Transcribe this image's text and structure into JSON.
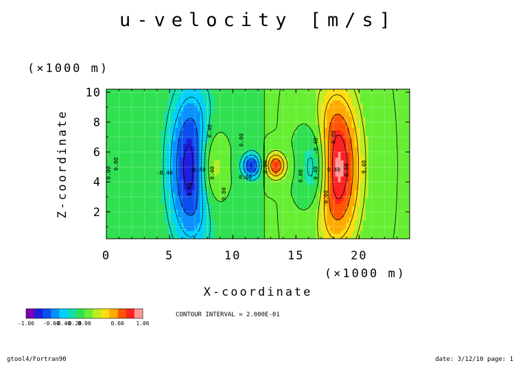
{
  "footer_left": "gtool4/Fortran90",
  "footer_right": "date: 3/12/10 page: 1",
  "chart_data": {
    "type": "heatmap",
    "title": "u-velocity [m/s]",
    "xlabel": "X-coordinate",
    "ylabel": "Z-coordinate",
    "x_unit": "(×1000 m)",
    "y_unit": "(×1000 m)",
    "xlim": [
      0,
      24
    ],
    "ylim": [
      0.2,
      10.2
    ],
    "x_tick_values": [
      0,
      5,
      10,
      15,
      20
    ],
    "x_tick_labels": [
      "0",
      "5",
      "10",
      "15",
      "20"
    ],
    "y_tick_values": [
      2,
      4,
      6,
      8,
      10
    ],
    "y_tick_labels": [
      "2",
      "4",
      "6",
      "8",
      "10"
    ],
    "contour_interval_text": "CONTOUR INTERVAL = 2.000E-01",
    "field": {
      "x_center": 12.5,
      "z_center": 5.2,
      "terms": [
        {
          "amp": -0.95,
          "x0": 6.8,
          "sx": 1.3,
          "z0": 5.0,
          "sz": 3.6
        },
        {
          "amp": 1.0,
          "x0": 18.2,
          "sx": 1.3,
          "z0": 5.0,
          "sz": 3.6
        },
        {
          "amp": 0.6,
          "x0": 8.2,
          "sx": 0.8,
          "z0": 5.0,
          "sz": 2.0
        },
        {
          "amp": -0.6,
          "x0": 16.6,
          "sx": 0.8,
          "z0": 5.0,
          "sz": 2.0
        },
        {
          "amp": -0.8,
          "x0": 11.5,
          "sx": 0.55,
          "z0": 5.1,
          "sz": 0.6
        },
        {
          "amp": 0.8,
          "x0": 13.4,
          "sx": 0.55,
          "z0": 5.1,
          "sz": 0.6
        }
      ]
    },
    "colorbar": {
      "min": -1.06,
      "max": 1.06,
      "colors": [
        "#7a00b0",
        "#1e1edd",
        "#0a50f0",
        "#0a90ff",
        "#00d0ff",
        "#10e0b0",
        "#30e050",
        "#66ee33",
        "#bbee22",
        "#ffdd10",
        "#ffaa00",
        "#ff5500",
        "#ff2222",
        "#ff9999"
      ],
      "labels": [
        "-1.06",
        "-0.60",
        "-0.40",
        "-0.20",
        "0.00",
        "0.60",
        "1.06"
      ]
    },
    "contour_labels": [
      {
        "text": "0.40",
        "x": 8.2,
        "z": 7.4,
        "rot": -90
      },
      {
        "text": "0.40",
        "x": 8.4,
        "z": 4.6,
        "rot": -90
      },
      {
        "text": "0.00",
        "x": 9.3,
        "z": 3.2,
        "rot": -90
      },
      {
        "text": "0.00",
        "x": 10.7,
        "z": 6.8,
        "rot": -90
      },
      {
        "text": "0.00",
        "x": 11.0,
        "z": 4.3,
        "rot": 0
      },
      {
        "text": "0.00",
        "x": 12.6,
        "z": 5.0,
        "rot": -90
      },
      {
        "text": "-0.40",
        "x": 6.6,
        "z": 3.4,
        "rot": -90
      },
      {
        "text": "-0.40",
        "x": 7.2,
        "z": 4.8,
        "rot": 0
      },
      {
        "text": "-0.40",
        "x": 4.6,
        "z": 4.6,
        "rot": 0
      },
      {
        "text": "0.00",
        "x": 0.8,
        "z": 5.2,
        "rot": -90
      },
      {
        "text": "0.00",
        "x": 0.2,
        "z": 4.6,
        "rot": -90
      },
      {
        "text": "0.00",
        "x": 15.4,
        "z": 4.4,
        "rot": -90
      },
      {
        "text": "-0.40",
        "x": 16.6,
        "z": 6.4,
        "rot": -90
      },
      {
        "text": "0.40",
        "x": 16.6,
        "z": 4.6,
        "rot": -90
      },
      {
        "text": "0.40",
        "x": 18.0,
        "z": 4.8,
        "rot": 0
      },
      {
        "text": "0.60",
        "x": 19.0,
        "z": 4.8,
        "rot": -90
      },
      {
        "text": "0.80",
        "x": 18.0,
        "z": 7.0,
        "rot": -90
      },
      {
        "text": "0.40",
        "x": 20.4,
        "z": 5.0,
        "rot": -90
      },
      {
        "text": "0.00",
        "x": 17.4,
        "z": 3.0,
        "rot": -90
      }
    ]
  }
}
